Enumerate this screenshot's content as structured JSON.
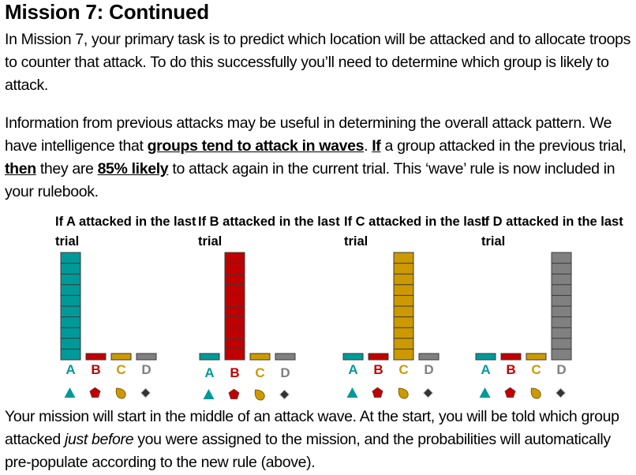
{
  "title": "Mission 7: Continued",
  "para1": "In Mission 7, your primary task is to predict which location will be attacked and to allocate troops to counter that attack.  To do this successfully you’ll need to determine which group is likely to attack.",
  "para2": {
    "t1": "Information from previous attacks may be useful in determining the overall attack pattern.  We have intelligence that ",
    "b1": "groups tend to attack in waves",
    "t2": ". ",
    "b2": "If",
    "t3": " a group attacked in the previous trial, ",
    "b3": "then",
    "t4": " they are ",
    "b4": "85% likely",
    "t5": " to attack again in the current trial. This ‘wave’ rule is now included in your rulebook."
  },
  "para3": {
    "t1": "Your mission will start in the middle of an attack wave.  At the start, you will be told which group attacked ",
    "i1": "just before",
    "t2": " you were assigned to the mission, and the probabilities will automatically pre-populate according to the new rule (above)."
  },
  "groups": [
    {
      "letter": "A",
      "color": "#009999",
      "icon": "triangle-icon"
    },
    {
      "letter": "B",
      "color": "#c00000",
      "icon": "pentagon-icon"
    },
    {
      "letter": "C",
      "color": "#cc9900",
      "icon": "teardrop-icon"
    },
    {
      "letter": "D",
      "color": "#808080",
      "icon": "diamond-icon"
    }
  ],
  "chart_data": [
    {
      "type": "bar",
      "title": "If A attacked in the last trial",
      "categories": [
        "A",
        "B",
        "C",
        "D"
      ],
      "values": [
        85,
        5,
        5,
        5
      ]
    },
    {
      "type": "bar",
      "title": "If B attacked in the last trial",
      "categories": [
        "A",
        "B",
        "C",
        "D"
      ],
      "values": [
        5,
        85,
        5,
        5
      ]
    },
    {
      "type": "bar",
      "title": "If C attacked in the last trial",
      "categories": [
        "A",
        "B",
        "C",
        "D"
      ],
      "values": [
        5,
        5,
        85,
        5
      ]
    },
    {
      "type": "bar",
      "title": "If D attacked in the last trial",
      "categories": [
        "A",
        "B",
        "C",
        "D"
      ],
      "values": [
        5,
        5,
        5,
        85
      ]
    }
  ]
}
